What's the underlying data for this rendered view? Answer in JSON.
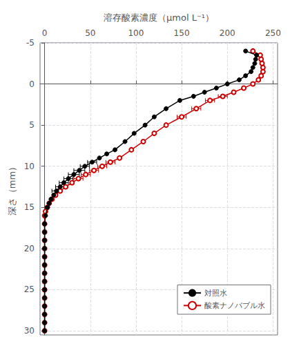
{
  "chart_data": {
    "type": "line",
    "xlabel": "溶存酸素濃度（μmol L⁻¹）",
    "ylabel": "深さ（mm）",
    "xlim": [
      -5,
      255
    ],
    "ylim": [
      30.5,
      -5
    ],
    "xticks": [
      0,
      50,
      100,
      150,
      200,
      250
    ],
    "yticks": [
      -5,
      0,
      5,
      10,
      15,
      20,
      25,
      30
    ],
    "grid": true,
    "legend": "lower right",
    "series": [
      {
        "name": "対照水",
        "color": "#000000",
        "marker": "circle",
        "x": [
          0,
          0,
          0,
          0,
          0,
          0,
          0,
          0,
          0,
          0,
          0,
          0,
          0,
          0,
          1,
          3,
          5,
          7,
          10,
          13,
          17,
          21,
          26,
          32,
          38,
          44,
          52,
          60,
          68,
          77,
          88,
          98,
          110,
          120,
          133,
          148,
          163,
          175,
          188,
          200,
          213,
          220,
          226,
          228,
          230,
          231,
          232,
          220
        ],
        "y": [
          30,
          29,
          28,
          27,
          26,
          25,
          24,
          23,
          22,
          21,
          20,
          19,
          18,
          17,
          16,
          15,
          14.5,
          14,
          13.5,
          13,
          12.5,
          12,
          11.5,
          11,
          10.5,
          10,
          9.5,
          9,
          8.5,
          8,
          7,
          6,
          5,
          4,
          3,
          2,
          1.5,
          1,
          0.5,
          0,
          -0.5,
          -1,
          -1.5,
          -2,
          -2.5,
          -3,
          -3.5,
          -4
        ],
        "xerr": [
          0,
          0,
          0,
          0,
          0,
          0,
          0,
          0,
          0,
          0,
          0,
          0,
          0,
          0,
          0,
          0,
          0,
          0,
          0,
          5,
          5,
          5,
          5,
          6,
          6,
          5,
          5,
          0,
          0,
          0,
          0,
          0,
          0,
          0,
          0,
          0,
          0,
          0,
          0,
          0,
          0,
          0,
          0,
          0,
          0,
          0,
          0,
          0
        ]
      },
      {
        "name": "酸素ナノバブル水",
        "color": "#cc0000",
        "marker": "emptyCircle",
        "x": [
          0,
          0,
          0,
          0,
          0,
          0,
          0,
          0,
          0,
          0,
          0,
          0,
          0,
          0,
          0,
          1,
          3,
          5,
          8,
          12,
          17,
          23,
          30,
          37,
          45,
          54,
          63,
          72,
          82,
          95,
          108,
          120,
          133,
          150,
          166,
          181,
          195,
          207,
          218,
          228,
          234,
          237,
          239,
          239,
          238,
          237,
          236,
          228
        ],
        "y": [
          30,
          29,
          28,
          27,
          26,
          25,
          24,
          23,
          22,
          21,
          20,
          19,
          18,
          17,
          16,
          15.5,
          15,
          14.5,
          14,
          13.5,
          13,
          12.5,
          12,
          11.5,
          11,
          10.5,
          10,
          9.5,
          9,
          8,
          7,
          6,
          5,
          4,
          3,
          2,
          1.5,
          1,
          0.5,
          0,
          -0.5,
          -1,
          -1.5,
          -2,
          -2.5,
          -3,
          -3.5,
          -4
        ],
        "xerr": [
          0,
          0,
          0,
          0,
          0,
          0,
          0,
          0,
          0,
          0,
          0,
          0,
          0,
          0,
          0,
          0,
          0,
          0,
          0,
          0,
          0,
          0,
          0,
          5,
          5,
          5,
          5,
          5,
          0,
          0,
          0,
          0,
          0,
          5,
          5,
          5,
          5,
          0,
          0,
          0,
          0,
          0,
          0,
          0,
          0,
          0,
          0,
          0
        ]
      }
    ]
  }
}
